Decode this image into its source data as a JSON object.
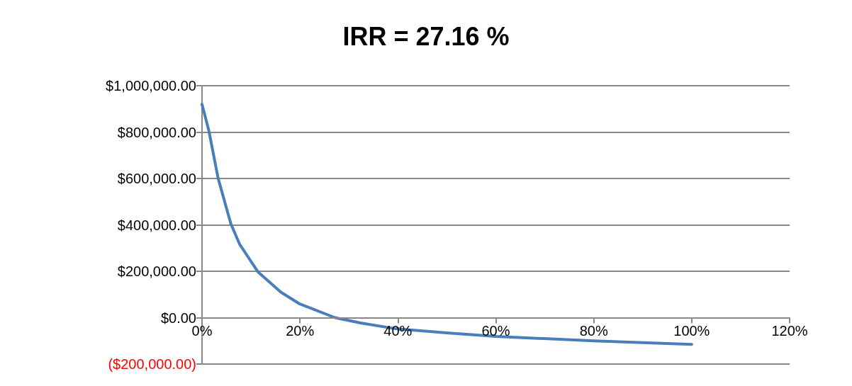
{
  "chart_data": {
    "type": "line",
    "title": "IRR = 27.16 %",
    "x": [
      0,
      1.4,
      3.3,
      5.9,
      7.7,
      11.4,
      16.1,
      19.8,
      27.16,
      32.4,
      39.3,
      50,
      60,
      80,
      100
    ],
    "series": [
      {
        "color": "#4a7ebb",
        "values": [
          920000,
          806000,
          600000,
          404000,
          316000,
          198000,
          110000,
          61000,
          0,
          -23000,
          -47000,
          -66000,
          -81000,
          -100000,
          -115000
        ]
      }
    ],
    "xlim": [
      0,
      120
    ],
    "xticks": [
      {
        "value": 0,
        "label": "0%"
      },
      {
        "value": 20,
        "label": "20%"
      },
      {
        "value": 40,
        "label": "40%"
      },
      {
        "value": 60,
        "label": "60%"
      },
      {
        "value": 80,
        "label": "80%"
      },
      {
        "value": 100,
        "label": "100%"
      },
      {
        "value": 120,
        "label": "120%"
      }
    ],
    "ylim": [
      -200000,
      1000000
    ],
    "yticks": [
      {
        "value": -200000,
        "label": "($200,000.00)"
      },
      {
        "value": 0,
        "label": "$0.00"
      },
      {
        "value": 200000,
        "label": "$200,000.00"
      },
      {
        "value": 400000,
        "label": "$400,000.00"
      },
      {
        "value": 600000,
        "label": "$600,000.00"
      },
      {
        "value": 800000,
        "label": "$800,000.00"
      },
      {
        "value": 1000000,
        "label": "$1,000,000.00"
      }
    ],
    "grid": "y",
    "marker": "none",
    "line_style": "solid"
  }
}
